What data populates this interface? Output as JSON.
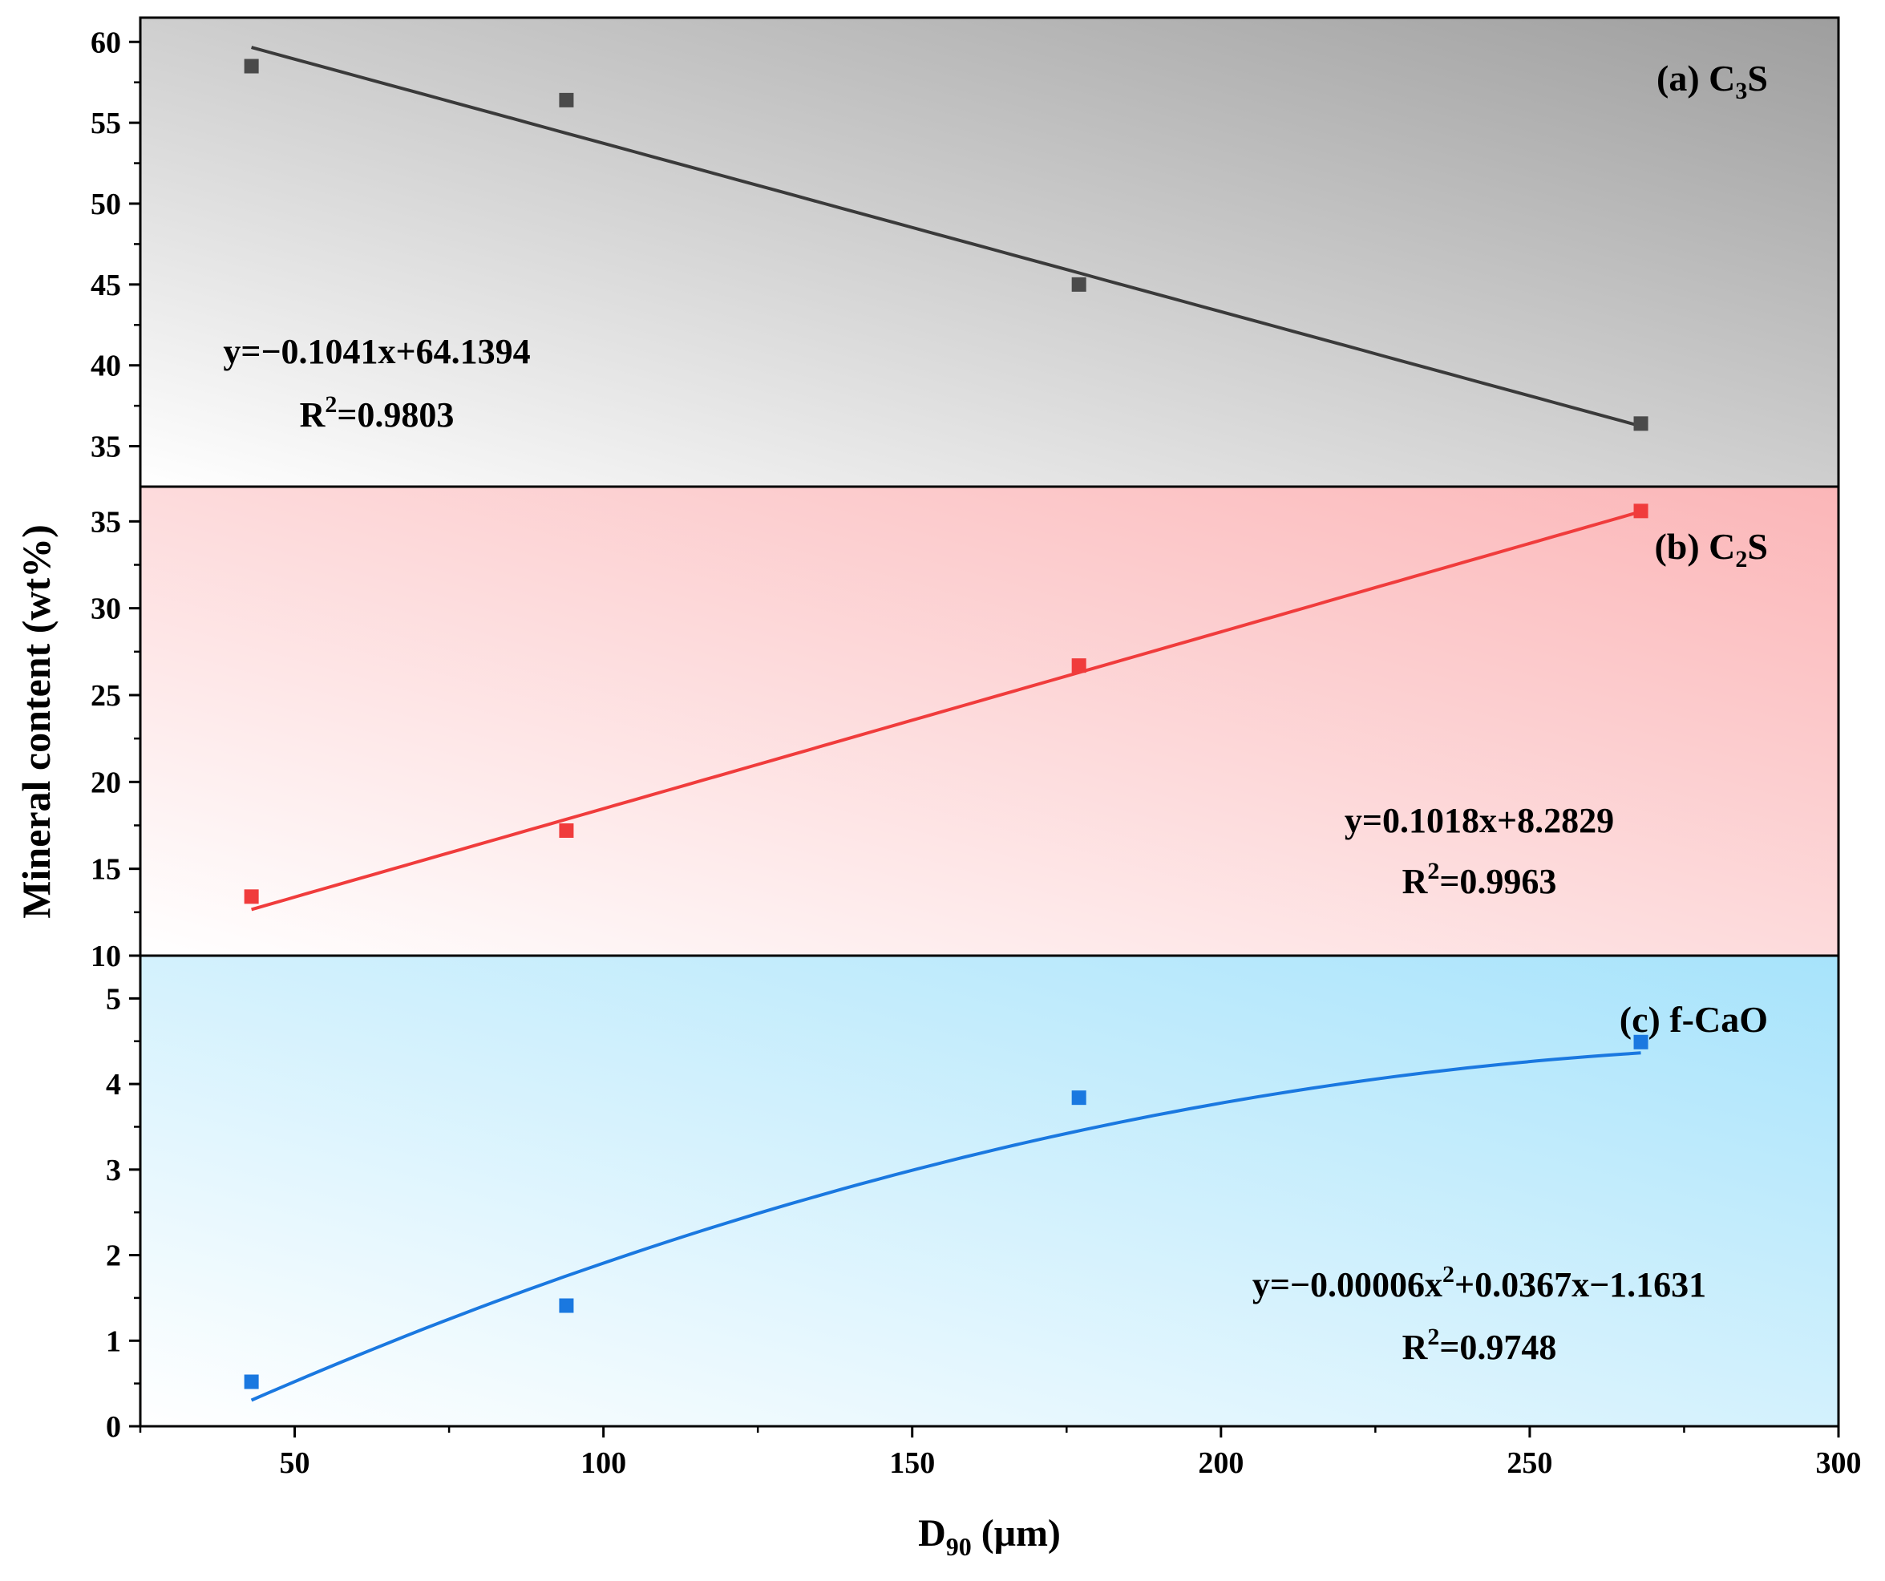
{
  "chart_data": {
    "type": "scatter",
    "ylabel": "Mineral content (wt%)",
    "xlabel": {
      "main": "D",
      "sub": "90",
      "rest": " (μm)"
    },
    "xlim": [
      25,
      300
    ],
    "x_ticks": [
      50,
      100,
      150,
      200,
      250,
      300
    ],
    "x_tick_labels": [
      "50",
      "100",
      "150",
      "200",
      "250",
      "300"
    ],
    "panels": [
      {
        "id": "a",
        "label": {
          "main": "(a) C",
          "sub": "3",
          "rest": "S"
        },
        "ylim": [
          32.5,
          61.5
        ],
        "y_ticks": [
          35,
          40,
          45,
          50,
          55,
          60
        ],
        "y_tick_labels": [
          "35",
          "40",
          "45",
          "50",
          "55",
          "60"
        ],
        "marker_color": "#4a4a4a",
        "fit_color": "#3a3a3a",
        "bg_light": "#ffffff",
        "bg_dark": "#9e9e9e",
        "x": [
          43,
          94,
          177,
          268
        ],
        "y": [
          58.5,
          56.4,
          45.0,
          36.4
        ],
        "fit": {
          "kind": "linear",
          "a": -0.1041,
          "b": 64.1394,
          "x_range": [
            43,
            268
          ]
        },
        "equation": "y=−0.1041x+64.1394",
        "r2": {
          "main": "R",
          "sup": "2",
          "rest": "=0.9803"
        }
      },
      {
        "id": "b",
        "label": {
          "main": "(b) C",
          "sub": "2",
          "rest": "S"
        },
        "ylim": [
          10,
          37
        ],
        "y_ticks": [
          10,
          15,
          20,
          25,
          30,
          35
        ],
        "y_tick_labels": [
          "10",
          "15",
          "20",
          "25",
          "30",
          "35"
        ],
        "marker_color": "#f03c3c",
        "fit_color": "#f03c3c",
        "bg_light": "#ffffff",
        "bg_dark": "#fbb6b8",
        "x": [
          43,
          94,
          177,
          268
        ],
        "y": [
          13.4,
          17.2,
          26.7,
          35.6
        ],
        "fit": {
          "kind": "linear",
          "a": 0.1018,
          "b": 8.2829,
          "x_range": [
            43,
            268
          ]
        },
        "equation": "y=0.1018x+8.2829",
        "r2": {
          "main": "R",
          "sup": "2",
          "rest": "=0.9963"
        }
      },
      {
        "id": "c",
        "label": {
          "main": "(c) f-CaO",
          "sub": "",
          "rest": ""
        },
        "ylim": [
          0,
          5.5
        ],
        "y_ticks": [
          0,
          1,
          2,
          3,
          4,
          5
        ],
        "y_tick_labels": [
          "0",
          "1",
          "2",
          "3",
          "4",
          "5"
        ],
        "marker_color": "#1a78e0",
        "fit_color": "#1a78e0",
        "bg_light": "#ffffff",
        "bg_dark": "#a7e3fb",
        "x": [
          43,
          94,
          177,
          268
        ],
        "y": [
          0.52,
          1.41,
          3.84,
          4.49
        ],
        "fit": {
          "kind": "quadratic",
          "a": -6e-05,
          "b": 0.0367,
          "c": -1.1631,
          "x_range": [
            43,
            268
          ]
        },
        "equation": {
          "p1": "y=−0.00006x",
          "sup": "2",
          "p2": "+0.0367x−1.1631"
        },
        "r2": {
          "main": "R",
          "sup": "2",
          "rest": "=0.9748"
        }
      }
    ]
  }
}
